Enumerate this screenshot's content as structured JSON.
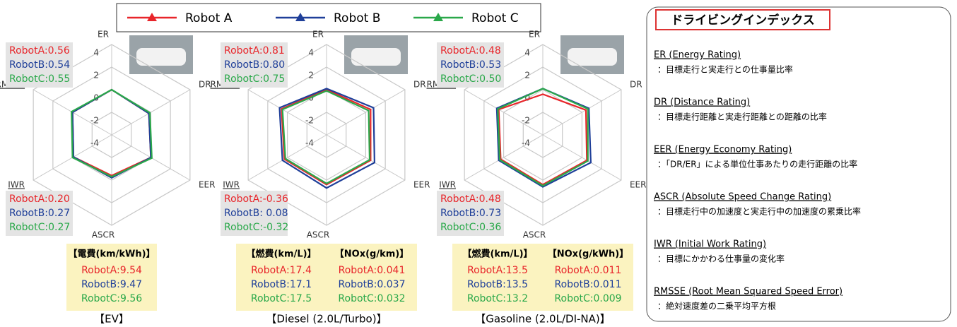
{
  "legend": {
    "series": [
      {
        "name": "Robot A",
        "color": "#e8252a"
      },
      {
        "name": "Robot B",
        "color": "#1f3f99"
      },
      {
        "name": "Robot C",
        "color": "#2aa84a"
      }
    ]
  },
  "chart_data": [
    {
      "type": "radar",
      "title": "【EV】",
      "axes": [
        "ER",
        "DR",
        "EER",
        "ASCR",
        "IWR",
        "RMSSE"
      ],
      "rlim": [
        -4,
        4
      ],
      "rticks": [
        4,
        2,
        0,
        -2,
        -4
      ],
      "series": [
        {
          "values": [
            0,
            -0.2,
            0,
            -0.4,
            -0.1,
            0
          ]
        },
        {
          "values": [
            0,
            -0.2,
            0,
            -0.2,
            -0.1,
            0
          ]
        },
        {
          "values": [
            0,
            -0.1,
            0.1,
            -0.3,
            0,
            0.1
          ]
        }
      ],
      "note_top": [
        "RobotA:0.56",
        "RobotB:0.54",
        "RobotC:0.55"
      ],
      "note_bottom": [
        "RobotA:0.20",
        "RobotB:0.27",
        "RobotC:0.27"
      ],
      "box": [
        {
          "header": "【電費(km/kWh)】",
          "lines": [
            "RobotA:9.54",
            "RobotB:9.47",
            "RobotC:9.56"
          ]
        }
      ]
    },
    {
      "type": "radar",
      "title": "【Diesel (2.0L/Turbo)】",
      "axes": [
        "ER",
        "DR",
        "EER",
        "ASCR",
        "IWR",
        "RMSSE"
      ],
      "rlim": [
        -4,
        4
      ],
      "rticks": [
        4,
        2,
        0,
        -2,
        -4
      ],
      "series": [
        {
          "values": [
            0,
            0.5,
            0.5,
            0.4,
            0.3,
            0.6
          ]
        },
        {
          "values": [
            0.1,
            0.8,
            0.9,
            0.7,
            0.5,
            0.8
          ]
        },
        {
          "values": [
            -0.1,
            0.3,
            0.4,
            0.3,
            0.2,
            0.5
          ]
        }
      ],
      "note_top": [
        "RobotA:0.81",
        "RobotB:0.80",
        "RobotC:0.75"
      ],
      "note_bottom": [
        "RobotA:-0.36",
        "RobotB: 0.08",
        "RobotC:-0.32"
      ],
      "box": [
        {
          "header": "【燃費(km/L)】",
          "lines": [
            "RobotA:17.4",
            "RobotB:17.1",
            "RobotC:17.5"
          ]
        },
        {
          "header": "【NOx(g/km)】",
          "lines": [
            "RobotA:0.041",
            "RobotB:0.037",
            "RobotC:0.032"
          ]
        }
      ]
    },
    {
      "type": "radar",
      "title": "【Gasoline (2.0L/DI-NA)】",
      "axes": [
        "ER",
        "DR",
        "EER",
        "ASCR",
        "IWR",
        "RMSSE"
      ],
      "rlim": [
        -4,
        4
      ],
      "rticks": [
        4,
        2,
        0,
        -2,
        -4
      ],
      "series": [
        {
          "values": [
            -0.4,
            0.4,
            0.5,
            0.4,
            0.3,
            0.5
          ]
        },
        {
          "values": [
            0.1,
            0.7,
            0.9,
            0.6,
            0.5,
            0.7
          ]
        },
        {
          "values": [
            0.1,
            0.6,
            0.6,
            0.5,
            0.4,
            0.6
          ]
        }
      ],
      "note_top": [
        "RobotA:0.48",
        "RobotB:0.53",
        "RobotC:0.50"
      ],
      "note_bottom": [
        "RobotA:0.48",
        "RobotB:0.73",
        "RobotC:0.36"
      ],
      "box": [
        {
          "header": "【燃費(km/L)】",
          "lines": [
            "RobotA:13.5",
            "RobotB:13.5",
            "RobotC:13.2"
          ]
        },
        {
          "header": "【NOx(g/kWh)】",
          "lines": [
            "RobotA:0.011",
            "RobotB:0.011",
            "RobotC:0.009"
          ]
        }
      ]
    }
  ],
  "index_panel": {
    "title": "ドライビングインデックス",
    "items": [
      {
        "term": "ER (Energy Rating)",
        "desc": "：目標走行と実走行との仕事量比率"
      },
      {
        "term": "DR (Distance Rating)",
        "desc": "：目標走行距離と実走行距離との距離の比率"
      },
      {
        "term": "EER (Energy Economy Rating)",
        "desc": "：「DR/ER」による単位仕事あたりの走行距離の比率"
      },
      {
        "term": "ASCR (Absolute Speed Change Rating)",
        "desc": "：目標走行中の加速度と実走行中の加速度の累乗比率"
      },
      {
        "term": "IWR (Initial Work Rating)",
        "desc": "：目標にかかわる仕事量の変化率"
      },
      {
        "term": "RMSSE (Root Mean Squared Speed Error)",
        "desc": "：絶対速度差の二乗平均平方根"
      }
    ]
  }
}
